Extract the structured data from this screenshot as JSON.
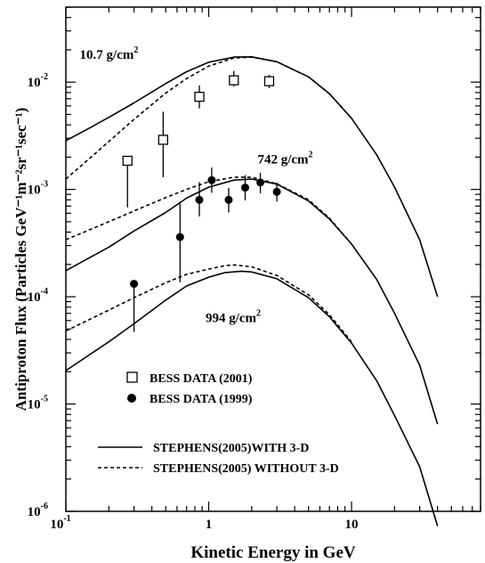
{
  "chart_data": {
    "type": "line",
    "xlabel": "Kinetic Energy in GeV",
    "ylabel": "Antiproton Flux (Particles GeV⁻¹m⁻²sr⁻¹sec⁻¹)",
    "xscale": "log",
    "yscale": "log",
    "xlim": [
      0.1,
      80
    ],
    "ylim": [
      1e-06,
      0.05
    ],
    "x_ticks": [
      {
        "value": 0.1,
        "base": "10",
        "exp": "-1"
      },
      {
        "value": 1,
        "base": "1",
        "exp": ""
      },
      {
        "value": 10,
        "base": "10",
        "exp": ""
      }
    ],
    "y_ticks": [
      {
        "value": 1e-06,
        "base": "10",
        "exp": "-6"
      },
      {
        "value": 1e-05,
        "base": "10",
        "exp": "-5"
      },
      {
        "value": 0.0001,
        "base": "10",
        "exp": "-4"
      },
      {
        "value": 0.001,
        "base": "10",
        "exp": "-3"
      },
      {
        "value": 0.01,
        "base": "10",
        "exp": "-2"
      }
    ],
    "annotations": [
      {
        "text": "10.7 g/cm",
        "sup": "2",
        "x": 0.125,
        "y": 0.0165
      },
      {
        "text": "742 g/cm",
        "sup": "2",
        "x": 2.2,
        "y": 0.00175
      },
      {
        "text": "994 g/cm",
        "sup": "2",
        "x": 0.95,
        "y": 5.8e-05
      }
    ],
    "legend": {
      "position": "bottom-left",
      "entries": [
        {
          "label": "BESS DATA (2001)",
          "marker": "open-square"
        },
        {
          "label": "BESS DATA (1999)",
          "marker": "filled-circle"
        },
        {
          "label": "STEPHENS(2005)WITH 3-D",
          "line": "solid"
        },
        {
          "label": "STEPHENS(2005) WITHOUT 3-D",
          "line": "dashed"
        }
      ]
    },
    "series": [
      {
        "name": "BESS DATA (2001)",
        "kind": "scatter",
        "marker": "open-square",
        "points": [
          {
            "x": 0.27,
            "y": 0.00185,
            "ylo": 0.00068,
            "yhi": 0.00185
          },
          {
            "x": 0.48,
            "y": 0.0029,
            "ylo": 0.0013,
            "yhi": 0.0053
          },
          {
            "x": 0.86,
            "y": 0.0073,
            "ylo": 0.0057,
            "yhi": 0.0093
          },
          {
            "x": 1.5,
            "y": 0.0104,
            "ylo": 0.0091,
            "yhi": 0.0127
          },
          {
            "x": 2.65,
            "y": 0.0102,
            "ylo": 0.0088,
            "yhi": 0.0117
          }
        ]
      },
      {
        "name": "BESS DATA (1999)",
        "kind": "scatter",
        "marker": "filled-circle",
        "points": [
          {
            "x": 0.3,
            "y": 0.000132,
            "ylo": 4.7e-05,
            "yhi": 0.000132
          },
          {
            "x": 0.63,
            "y": 0.00036,
            "ylo": 0.000136,
            "yhi": 0.00074
          },
          {
            "x": 0.86,
            "y": 0.0008,
            "ylo": 0.00056,
            "yhi": 0.00117
          },
          {
            "x": 1.05,
            "y": 0.00122,
            "ylo": 0.00093,
            "yhi": 0.0016
          },
          {
            "x": 1.38,
            "y": 0.0008,
            "ylo": 0.00061,
            "yhi": 0.00103
          },
          {
            "x": 1.8,
            "y": 0.00104,
            "ylo": 0.00079,
            "yhi": 0.00136
          },
          {
            "x": 2.3,
            "y": 0.00116,
            "ylo": 0.00092,
            "yhi": 0.00143
          },
          {
            "x": 3.0,
            "y": 0.00095,
            "ylo": 0.00077,
            "yhi": 0.00116
          }
        ]
      },
      {
        "name": "STEPHENS(2005)WITH 3-D",
        "kind": "line",
        "style": "solid",
        "curves": [
          [
            [
              0.1,
              0.00285
            ],
            [
              0.15,
              0.0038
            ],
            [
              0.2,
              0.0047
            ],
            [
              0.3,
              0.0064
            ],
            [
              0.5,
              0.0097
            ],
            [
              0.7,
              0.0125
            ],
            [
              1,
              0.0153
            ],
            [
              1.5,
              0.0171
            ],
            [
              2,
              0.0172
            ],
            [
              3,
              0.0155
            ],
            [
              5,
              0.0112
            ],
            [
              7,
              0.0078
            ],
            [
              10,
              0.0046
            ],
            [
              15,
              0.0021
            ],
            [
              20,
              0.00105
            ],
            [
              30,
              0.00034
            ],
            [
              40,
              0.0001
            ]
          ],
          [
            [
              0.1,
              0.000175
            ],
            [
              0.2,
              0.00029
            ],
            [
              0.3,
              0.00041
            ],
            [
              0.5,
              0.00061
            ],
            [
              0.7,
              0.00083
            ],
            [
              1,
              0.00105
            ],
            [
              1.5,
              0.00122
            ],
            [
              2,
              0.00125
            ],
            [
              3,
              0.00112
            ],
            [
              5,
              0.00078
            ],
            [
              7,
              0.00053
            ],
            [
              10,
              0.00031
            ],
            [
              15,
              0.000145
            ],
            [
              20,
              7e-05
            ],
            [
              30,
              2.3e-05
            ],
            [
              40,
              6.5e-06
            ]
          ],
          [
            [
              0.1,
              2.05e-05
            ],
            [
              0.2,
              3.8e-05
            ],
            [
              0.3,
              5.6e-05
            ],
            [
              0.5,
              9.3e-05
            ],
            [
              0.7,
              0.000126
            ],
            [
              1,
              0.000152
            ],
            [
              1.3,
              0.000168
            ],
            [
              1.7,
              0.000173
            ],
            [
              2,
              0.00017
            ],
            [
              3,
              0.000147
            ],
            [
              5,
              9.8e-05
            ],
            [
              7,
              6.5e-05
            ],
            [
              10,
              3.7e-05
            ],
            [
              15,
              1.65e-05
            ],
            [
              20,
              7.8e-06
            ],
            [
              30,
              2.6e-06
            ],
            [
              40,
              7.3e-07
            ]
          ]
        ]
      },
      {
        "name": "STEPHENS(2005) WITHOUT 3-D",
        "kind": "line",
        "style": "dashed",
        "curves": [
          [
            [
              0.1,
              0.00125
            ],
            [
              0.15,
              0.002
            ],
            [
              0.2,
              0.0028
            ],
            [
              0.3,
              0.0045
            ],
            [
              0.5,
              0.0079
            ],
            [
              0.7,
              0.0108
            ],
            [
              1,
              0.0141
            ],
            [
              1.5,
              0.0168
            ],
            [
              2,
              0.0171
            ],
            [
              3,
              0.0155
            ],
            [
              5,
              0.0112
            ],
            [
              7,
              0.0078
            ],
            [
              10,
              0.0046
            ]
          ],
          [
            [
              0.1,
              0.00034
            ],
            [
              0.2,
              0.0005
            ],
            [
              0.3,
              0.00063
            ],
            [
              0.5,
              0.00084
            ],
            [
              0.7,
              0.001
            ],
            [
              1,
              0.00118
            ],
            [
              1.5,
              0.0013
            ],
            [
              2,
              0.0013
            ],
            [
              3,
              0.00113
            ],
            [
              5,
              0.0008
            ],
            [
              7,
              0.00054
            ],
            [
              10,
              0.00031
            ]
          ],
          [
            [
              0.1,
              4.8e-05
            ],
            [
              0.2,
              7.5e-05
            ],
            [
              0.3,
              9.8e-05
            ],
            [
              0.5,
              0.000135
            ],
            [
              0.7,
              0.000162
            ],
            [
              1,
              0.000181
            ],
            [
              1.3,
              0.000195
            ],
            [
              1.5,
              0.000198
            ],
            [
              2,
              0.00019
            ],
            [
              3,
              0.000158
            ],
            [
              5,
              0.000104
            ],
            [
              7,
              6.8e-05
            ],
            [
              10,
              3.8e-05
            ]
          ]
        ]
      }
    ]
  }
}
